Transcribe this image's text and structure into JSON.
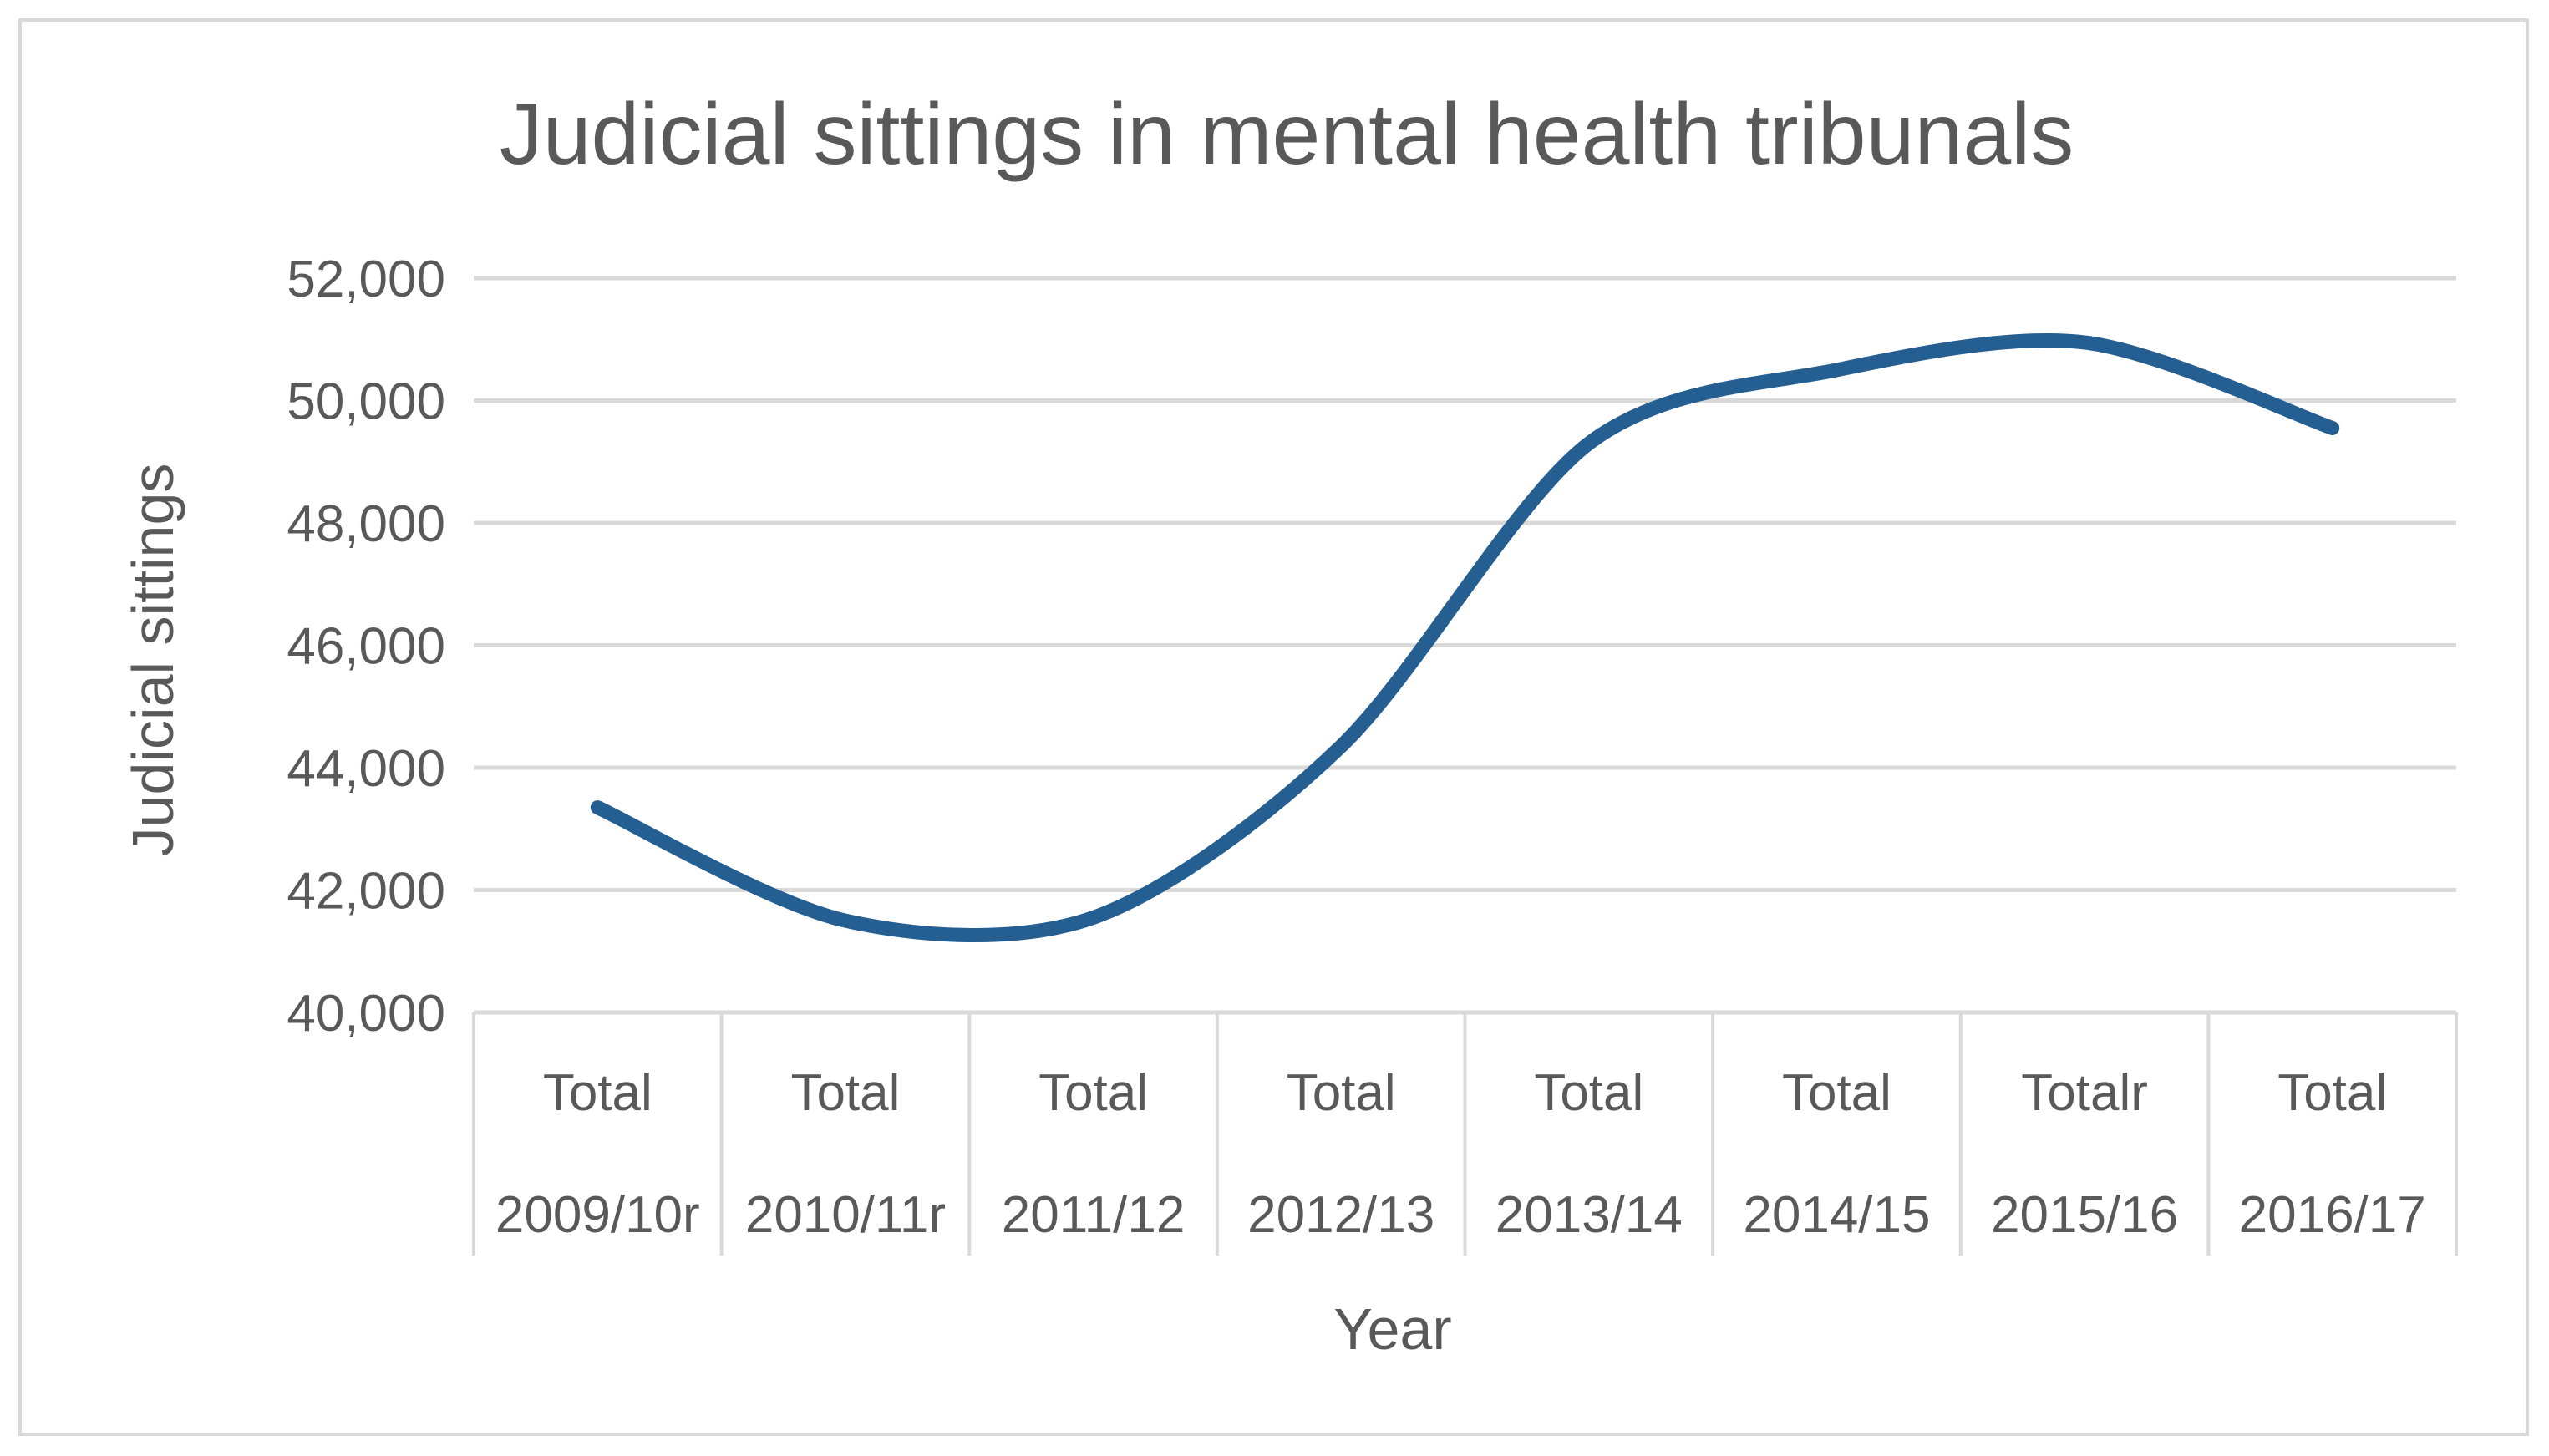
{
  "chart_data": {
    "type": "line",
    "title": "Judicial sittings in mental health tribunals",
    "xlabel": "Year",
    "ylabel": "Judicial sittings",
    "categories": [
      [
        "Total",
        "2009/10r"
      ],
      [
        "Total",
        "2010/11r"
      ],
      [
        "Total",
        "2011/12"
      ],
      [
        "Total",
        "2012/13"
      ],
      [
        "Total",
        "2013/14"
      ],
      [
        "Total",
        "2014/15"
      ],
      [
        "Totalr",
        "2015/16"
      ],
      [
        "Total",
        "2016/17"
      ]
    ],
    "series": [
      {
        "values": [
          43350,
          41500,
          41550,
          44350,
          49300,
          50500,
          50950,
          49550
        ]
      }
    ],
    "ylim": [
      40000,
      52000
    ],
    "yticks": [
      40000,
      42000,
      44000,
      46000,
      48000,
      50000,
      52000
    ],
    "ytick_labels": [
      "40,000",
      "42,000",
      "44,000",
      "46,000",
      "48,000",
      "50,000",
      "52,000"
    ],
    "grid": true,
    "legend": "none",
    "colors": {
      "series": "#255e91",
      "grid": "#d9d9d9",
      "text": "#595959"
    }
  }
}
